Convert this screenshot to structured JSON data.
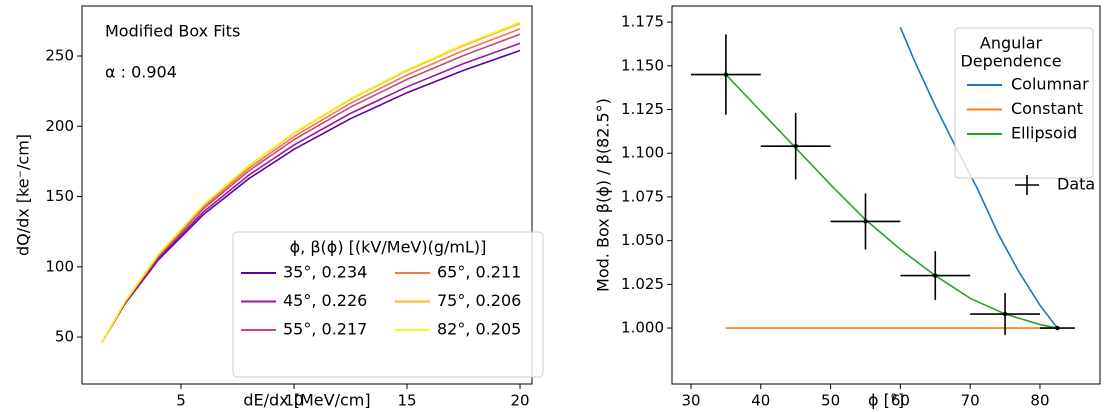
{
  "chart_data": [
    {
      "type": "line",
      "ylabel": "dQ/dx [ke⁻/cm]",
      "xlabel": "dE/dx [MeV/cm]",
      "annotations": [
        "Modified Box Fits",
        "α : 0.904"
      ],
      "legend_title": "ϕ, β(ϕ) [(kV/MeV)(g/mL)]",
      "legend": "lower right",
      "legend_columns": 2,
      "x": [
        1.5,
        2.5,
        4,
        6,
        8,
        10,
        12.5,
        15,
        17.5,
        20
      ],
      "series": [
        {
          "name": "35°, 0.234",
          "color": "#5c01a6",
          "values": [
            46.0,
            73.2,
            105.0,
            137.3,
            162.7,
            183.6,
            205.4,
            223.9,
            239.8,
            253.9
          ]
        },
        {
          "name": "45°, 0.226",
          "color": "#9c179e",
          "values": [
            46.0,
            73.6,
            106.1,
            139.2,
            165.2,
            186.7,
            209.2,
            228.1,
            244.6,
            259.0
          ]
        },
        {
          "name": "55°, 0.217",
          "color": "#cc4778",
          "values": [
            46.0,
            74.2,
            107.4,
            141.4,
            168.3,
            190.5,
            213.7,
            233.4,
            250.4,
            265.5
          ]
        },
        {
          "name": "65°, 0.211",
          "color": "#ed7953",
          "values": [
            45.9,
            74.4,
            108.1,
            142.7,
            170.1,
            192.7,
            216.4,
            236.5,
            253.9,
            269.3
          ]
        },
        {
          "name": "75°, 0.206",
          "color": "#fdb42f",
          "values": [
            45.9,
            74.7,
            108.8,
            144.0,
            171.8,
            194.9,
            219.1,
            239.6,
            257.4,
            273.1
          ]
        },
        {
          "name": "82°, 0.205",
          "color": "#f0f921",
          "values": [
            45.9,
            74.7,
            109.0,
            144.3,
            172.2,
            195.4,
            219.7,
            240.3,
            258.2,
            274.0
          ]
        }
      ],
      "xlim": [
        0.62,
        20.53
      ],
      "xticks": [
        5,
        10,
        15,
        20
      ],
      "ylim": [
        16.6,
        285.6
      ],
      "yticks": [
        50,
        100,
        150,
        200,
        250
      ]
    },
    {
      "type": "line",
      "ylabel": "Mod. Box β(ϕ) / β(82.5°)",
      "xlabel": "ϕ [°]",
      "legend_title": [
        "Angular",
        "Dependence"
      ],
      "legend": "upper right",
      "series": [
        {
          "name": "Columnar",
          "color": "#1f77b4",
          "x": [
            60,
            62,
            65,
            68,
            71,
            74,
            77,
            80,
            82.5
          ],
          "values": [
            1.172,
            1.153,
            1.127,
            1.103,
            1.08,
            1.054,
            1.032,
            1.013,
            1.0
          ]
        },
        {
          "name": "Constant",
          "color": "#ff7f0e",
          "x": [
            35,
            82.5
          ],
          "values": [
            1.0,
            1.0
          ]
        },
        {
          "name": "Ellipsoid",
          "color": "#2ca02c",
          "x": [
            35,
            40,
            45,
            50,
            55,
            60,
            65,
            70,
            75,
            80,
            82.5
          ],
          "values": [
            1.145,
            1.124,
            1.103,
            1.082,
            1.062,
            1.045,
            1.03,
            1.017,
            1.008,
            1.002,
            1.0
          ]
        }
      ],
      "points": {
        "name": "Data",
        "color": "#000000",
        "x": [
          35,
          45,
          55,
          65,
          75,
          82.5
        ],
        "values": [
          1.145,
          1.104,
          1.061,
          1.03,
          1.008,
          1.0
        ],
        "xerr": [
          5,
          5,
          5,
          5,
          5,
          2.5
        ],
        "yerr": [
          0.023,
          0.019,
          0.016,
          0.014,
          0.012,
          0
        ]
      },
      "xlim": [
        27.28,
        88.6
      ],
      "xticks": [
        30,
        40,
        50,
        60,
        70,
        80
      ],
      "ylim": [
        0.968,
        1.1842
      ],
      "yticks": [
        {
          "value": 1.0,
          "label": "1.000"
        },
        {
          "value": 1.025,
          "label": "1.025"
        },
        {
          "value": 1.05,
          "label": "1.050"
        },
        {
          "value": 1.075,
          "label": "1.075"
        },
        {
          "value": 1.1,
          "label": "1.100"
        },
        {
          "value": 1.125,
          "label": "1.125"
        },
        {
          "value": 1.15,
          "label": "1.150"
        },
        {
          "value": 1.175,
          "label": "1.175"
        }
      ]
    }
  ]
}
